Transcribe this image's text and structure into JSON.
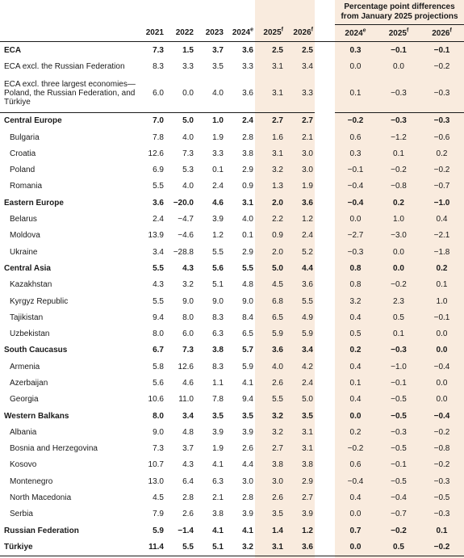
{
  "header": {
    "pp_title": "Percentage point differences from January 2025 projections",
    "years": [
      "2021",
      "2022",
      "2023",
      "2024",
      "2025",
      "2026"
    ],
    "year_sups": [
      "",
      "",
      "",
      "e",
      "f",
      "f"
    ],
    "diff_years": [
      "2024",
      "2025",
      "2026"
    ],
    "diff_sups": [
      "e",
      "f",
      "f"
    ]
  },
  "rows": [
    {
      "label": "ECA",
      "bold": true,
      "sub": false,
      "v": [
        "7.3",
        "1.5",
        "3.7",
        "3.6",
        "2.5",
        "2.5"
      ],
      "d": [
        "0.3",
        "−0.1",
        "−0.1"
      ]
    },
    {
      "label": "ECA excl. the Russian Federation",
      "bold": false,
      "sub": false,
      "v": [
        "8.3",
        "3.3",
        "3.5",
        "3.3",
        "3.1",
        "3.4"
      ],
      "d": [
        "0.0",
        "0.0",
        "−0.2"
      ]
    },
    {
      "label": "ECA excl. three largest economies—Poland, the Russian Federation, and Türkiye",
      "bold": false,
      "sub": false,
      "tall": true,
      "v": [
        "6.0",
        "0.0",
        "4.0",
        "3.6",
        "3.1",
        "3.3"
      ],
      "d": [
        "0.1",
        "−0.3",
        "−0.3"
      ]
    },
    {
      "label": "Central Europe",
      "bold": true,
      "sub": false,
      "sep": true,
      "v": [
        "7.0",
        "5.0",
        "1.0",
        "2.4",
        "2.7",
        "2.7"
      ],
      "d": [
        "−0.2",
        "−0.3",
        "−0.3"
      ]
    },
    {
      "label": "Bulgaria",
      "bold": false,
      "sub": true,
      "v": [
        "7.8",
        "4.0",
        "1.9",
        "2.8",
        "1.6",
        "2.1"
      ],
      "d": [
        "0.6",
        "−1.2",
        "−0.6"
      ]
    },
    {
      "label": "Croatia",
      "bold": false,
      "sub": true,
      "v": [
        "12.6",
        "7.3",
        "3.3",
        "3.8",
        "3.1",
        "3.0"
      ],
      "d": [
        "0.3",
        "0.1",
        "0.2"
      ]
    },
    {
      "label": "Poland",
      "bold": false,
      "sub": true,
      "v": [
        "6.9",
        "5.3",
        "0.1",
        "2.9",
        "3.2",
        "3.0"
      ],
      "d": [
        "−0.1",
        "−0.2",
        "−0.2"
      ]
    },
    {
      "label": "Romania",
      "bold": false,
      "sub": true,
      "v": [
        "5.5",
        "4.0",
        "2.4",
        "0.9",
        "1.3",
        "1.9"
      ],
      "d": [
        "−0.4",
        "−0.8",
        "−0.7"
      ]
    },
    {
      "label": "Eastern Europe",
      "bold": true,
      "sub": false,
      "v": [
        "3.6",
        "−20.0",
        "4.6",
        "3.1",
        "2.0",
        "3.6"
      ],
      "d": [
        "−0.4",
        "0.2",
        "−1.0"
      ]
    },
    {
      "label": "Belarus",
      "bold": false,
      "sub": true,
      "v": [
        "2.4",
        "−4.7",
        "3.9",
        "4.0",
        "2.2",
        "1.2"
      ],
      "d": [
        "0.0",
        "1.0",
        "0.4"
      ]
    },
    {
      "label": "Moldova",
      "bold": false,
      "sub": true,
      "v": [
        "13.9",
        "−4.6",
        "1.2",
        "0.1",
        "0.9",
        "2.4"
      ],
      "d": [
        "−2.7",
        "−3.0",
        "−2.1"
      ]
    },
    {
      "label": "Ukraine",
      "bold": false,
      "sub": true,
      "v": [
        "3.4",
        "−28.8",
        "5.5",
        "2.9",
        "2.0",
        "5.2"
      ],
      "d": [
        "−0.3",
        "0.0",
        "−1.8"
      ]
    },
    {
      "label": "Central Asia",
      "bold": true,
      "sub": false,
      "v": [
        "5.5",
        "4.3",
        "5.6",
        "5.5",
        "5.0",
        "4.4"
      ],
      "d": [
        "0.8",
        "0.0",
        "0.2"
      ]
    },
    {
      "label": "Kazakhstan",
      "bold": false,
      "sub": true,
      "v": [
        "4.3",
        "3.2",
        "5.1",
        "4.8",
        "4.5",
        "3.6"
      ],
      "d": [
        "0.8",
        "−0.2",
        "0.1"
      ]
    },
    {
      "label": "Kyrgyz Republic",
      "bold": false,
      "sub": true,
      "v": [
        "5.5",
        "9.0",
        "9.0",
        "9.0",
        "6.8",
        "5.5"
      ],
      "d": [
        "3.2",
        "2.3",
        "1.0"
      ]
    },
    {
      "label": "Tajikistan",
      "bold": false,
      "sub": true,
      "v": [
        "9.4",
        "8.0",
        "8.3",
        "8.4",
        "6.5",
        "4.9"
      ],
      "d": [
        "0.4",
        "0.5",
        "−0.1"
      ]
    },
    {
      "label": "Uzbekistan",
      "bold": false,
      "sub": true,
      "v": [
        "8.0",
        "6.0",
        "6.3",
        "6.5",
        "5.9",
        "5.9"
      ],
      "d": [
        "0.5",
        "0.1",
        "0.0"
      ]
    },
    {
      "label": "South Caucasus",
      "bold": true,
      "sub": false,
      "v": [
        "6.7",
        "7.3",
        "3.8",
        "5.7",
        "3.6",
        "3.4"
      ],
      "d": [
        "0.2",
        "−0.3",
        "0.0"
      ]
    },
    {
      "label": "Armenia",
      "bold": false,
      "sub": true,
      "v": [
        "5.8",
        "12.6",
        "8.3",
        "5.9",
        "4.0",
        "4.2"
      ],
      "d": [
        "0.4",
        "−1.0",
        "−0.4"
      ]
    },
    {
      "label": "Azerbaijan",
      "bold": false,
      "sub": true,
      "v": [
        "5.6",
        "4.6",
        "1.1",
        "4.1",
        "2.6",
        "2.4"
      ],
      "d": [
        "0.1",
        "−0.1",
        "0.0"
      ]
    },
    {
      "label": "Georgia",
      "bold": false,
      "sub": true,
      "v": [
        "10.6",
        "11.0",
        "7.8",
        "9.4",
        "5.5",
        "5.0"
      ],
      "d": [
        "0.4",
        "−0.5",
        "0.0"
      ]
    },
    {
      "label": "Western Balkans",
      "bold": true,
      "sub": false,
      "v": [
        "8.0",
        "3.4",
        "3.5",
        "3.5",
        "3.2",
        "3.5"
      ],
      "d": [
        "0.0",
        "−0.5",
        "−0.4"
      ]
    },
    {
      "label": "Albania",
      "bold": false,
      "sub": true,
      "v": [
        "9.0",
        "4.8",
        "3.9",
        "3.9",
        "3.2",
        "3.1"
      ],
      "d": [
        "0.2",
        "−0.3",
        "−0.2"
      ]
    },
    {
      "label": "Bosnia and Herzegovina",
      "bold": false,
      "sub": true,
      "v": [
        "7.3",
        "3.7",
        "1.9",
        "2.6",
        "2.7",
        "3.1"
      ],
      "d": [
        "−0.2",
        "−0.5",
        "−0.8"
      ]
    },
    {
      "label": "Kosovo",
      "bold": false,
      "sub": true,
      "v": [
        "10.7",
        "4.3",
        "4.1",
        "4.4",
        "3.8",
        "3.8"
      ],
      "d": [
        "0.6",
        "−0.1",
        "−0.2"
      ]
    },
    {
      "label": "Montenegro",
      "bold": false,
      "sub": true,
      "v": [
        "13.0",
        "6.4",
        "6.3",
        "3.0",
        "3.0",
        "2.9"
      ],
      "d": [
        "−0.4",
        "−0.5",
        "−0.3"
      ]
    },
    {
      "label": "North Macedonia",
      "bold": false,
      "sub": true,
      "v": [
        "4.5",
        "2.8",
        "2.1",
        "2.8",
        "2.6",
        "2.7"
      ],
      "d": [
        "0.4",
        "−0.4",
        "−0.5"
      ]
    },
    {
      "label": "Serbia",
      "bold": false,
      "sub": true,
      "v": [
        "7.9",
        "2.6",
        "3.8",
        "3.9",
        "3.5",
        "3.9"
      ],
      "d": [
        "0.0",
        "−0.7",
        "−0.3"
      ]
    },
    {
      "label": "Russian Federation",
      "bold": true,
      "sub": false,
      "v": [
        "5.9",
        "−1.4",
        "4.1",
        "4.1",
        "1.4",
        "1.2"
      ],
      "d": [
        "0.7",
        "−0.2",
        "0.1"
      ]
    },
    {
      "label": "Türkiye",
      "bold": true,
      "sub": false,
      "last": true,
      "v": [
        "11.4",
        "5.5",
        "5.1",
        "3.2",
        "3.1",
        "3.6"
      ],
      "d": [
        "0.0",
        "0.5",
        "−0.2"
      ]
    }
  ]
}
